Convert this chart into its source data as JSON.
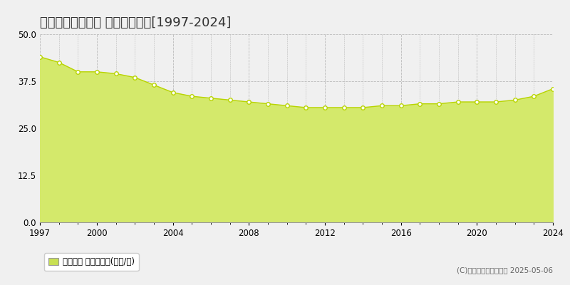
{
  "title": "知多郡東浦町緒川 基準地価推移[1997-2024]",
  "years": [
    1997,
    1998,
    1999,
    2000,
    2001,
    2002,
    2003,
    2004,
    2005,
    2006,
    2007,
    2008,
    2009,
    2010,
    2011,
    2012,
    2013,
    2014,
    2015,
    2016,
    2017,
    2018,
    2019,
    2020,
    2021,
    2022,
    2023,
    2024
  ],
  "values": [
    44.0,
    42.5,
    40.0,
    40.0,
    39.5,
    38.5,
    36.5,
    34.5,
    33.5,
    33.0,
    32.5,
    32.0,
    31.5,
    31.0,
    30.5,
    30.5,
    30.5,
    30.5,
    31.0,
    31.0,
    31.5,
    31.5,
    32.0,
    32.0,
    32.0,
    32.5,
    33.5,
    35.5
  ],
  "fill_color": "#d4e96b",
  "line_color": "#b8d400",
  "marker_color": "#ffffff",
  "marker_edge_color": "#b8d400",
  "bg_color": "#f0f0f0",
  "plot_bg_color": "#f0f0f0",
  "grid_color": "#bbbbbb",
  "ylim": [
    0,
    50
  ],
  "yticks": [
    0,
    12.5,
    25,
    37.5,
    50
  ],
  "xticks": [
    1997,
    2000,
    2004,
    2008,
    2012,
    2016,
    2020,
    2024
  ],
  "legend_label": "基準地価 平均坪単価(万円/坪)",
  "legend_color": "#c8e053",
  "copyright_text": "(C)土地価格ドットコム 2025-05-06",
  "title_fontsize": 13,
  "tick_fontsize": 8.5,
  "legend_fontsize": 8.5,
  "copyright_fontsize": 7.5
}
